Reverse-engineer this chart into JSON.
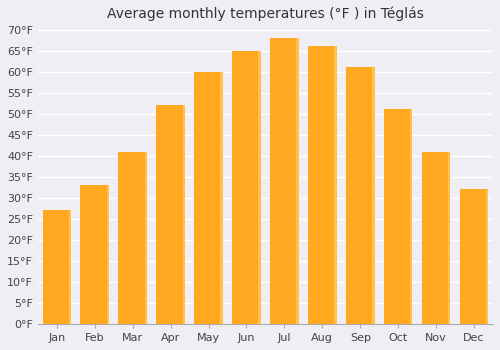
{
  "title": "Average monthly temperatures (°F ) in Téglás",
  "months": [
    "Jan",
    "Feb",
    "Mar",
    "Apr",
    "May",
    "Jun",
    "Jul",
    "Aug",
    "Sep",
    "Oct",
    "Nov",
    "Dec"
  ],
  "values": [
    27,
    33,
    41,
    52,
    60,
    65,
    68,
    66,
    61,
    51,
    41,
    32
  ],
  "bar_color": "#FFA820",
  "bar_edge_color": "#FFB830",
  "ylim": [
    0,
    70
  ],
  "yticks": [
    0,
    5,
    10,
    15,
    20,
    25,
    30,
    35,
    40,
    45,
    50,
    55,
    60,
    65,
    70
  ],
  "ytick_labels": [
    "0°F",
    "5°F",
    "10°F",
    "15°F",
    "20°F",
    "25°F",
    "30°F",
    "35°F",
    "40°F",
    "45°F",
    "50°F",
    "55°F",
    "60°F",
    "65°F",
    "70°F"
  ],
  "background_color": "#eeeef4",
  "plot_bg_color": "#eeeef4",
  "grid_color": "#ffffff",
  "title_fontsize": 10,
  "tick_fontsize": 8,
  "bar_width": 0.75
}
